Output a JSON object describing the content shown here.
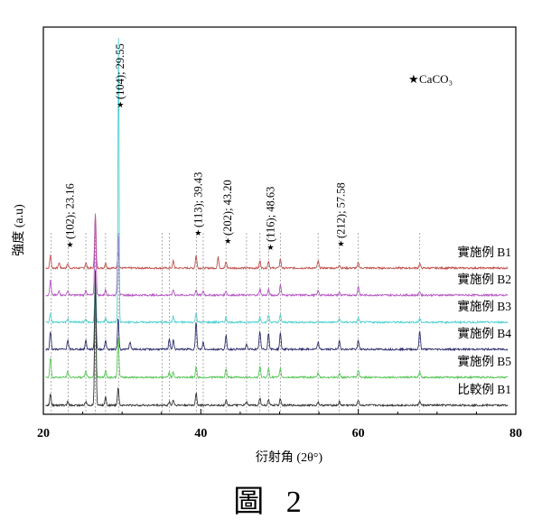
{
  "figure_caption": "圖 2",
  "chart_data": {
    "type": "line",
    "xlabel": "衍射角 (2θ°)",
    "ylabel": "強度 (a.u)",
    "xlim": [
      20,
      80
    ],
    "xticks": [
      20,
      40,
      60,
      80
    ],
    "grid": false,
    "legend_marker": "★",
    "legend_text": "CaCO₃",
    "peak_markers": [
      {
        "x": 23.16,
        "label": "(102); 23.16"
      },
      {
        "x": 29.55,
        "label": "(104); 29.55"
      },
      {
        "x": 39.43,
        "label": "(113); 39.43"
      },
      {
        "x": 43.2,
        "label": "(202); 43.20"
      },
      {
        "x": 48.63,
        "label": "(116); 48.63"
      },
      {
        "x": 57.58,
        "label": "(212); 57.58"
      }
    ],
    "reference_lines_x": [
      21.0,
      23.16,
      25.4,
      26.6,
      27.9,
      29.55,
      35.1,
      36.0,
      39.43,
      40.3,
      43.2,
      45.8,
      47.5,
      48.63,
      50.1,
      54.9,
      57.58,
      60.0,
      67.8
    ],
    "series": [
      {
        "name": "實施例 B1",
        "color": "#c0504d",
        "peaks": [
          [
            20.9,
            14
          ],
          [
            22.0,
            6
          ],
          [
            23.1,
            5
          ],
          [
            25.4,
            6
          ],
          [
            26.6,
            60
          ],
          [
            27.9,
            6
          ],
          [
            29.5,
            18
          ],
          [
            36.5,
            8
          ],
          [
            39.4,
            14
          ],
          [
            42.2,
            12
          ],
          [
            43.2,
            7
          ],
          [
            47.5,
            8
          ],
          [
            48.6,
            8
          ],
          [
            50.1,
            10
          ],
          [
            54.9,
            8
          ],
          [
            57.6,
            4
          ],
          [
            60.0,
            6
          ],
          [
            67.8,
            5
          ]
        ]
      },
      {
        "name": "實施例 B2",
        "color": "#b455c2",
        "peaks": [
          [
            20.9,
            16
          ],
          [
            22.0,
            5
          ],
          [
            23.1,
            5
          ],
          [
            25.4,
            6
          ],
          [
            26.6,
            90
          ],
          [
            27.9,
            6
          ],
          [
            29.5,
            70
          ],
          [
            36.5,
            6
          ],
          [
            39.4,
            6
          ],
          [
            40.3,
            5
          ],
          [
            43.2,
            5
          ],
          [
            47.5,
            7
          ],
          [
            48.6,
            6
          ],
          [
            50.1,
            12
          ],
          [
            54.9,
            5
          ],
          [
            57.6,
            3
          ],
          [
            60.0,
            10
          ],
          [
            67.8,
            4
          ]
        ]
      },
      {
        "name": "實施例 B3",
        "color": "#4fd0d0",
        "peaks": [
          [
            20.9,
            10
          ],
          [
            23.1,
            4
          ],
          [
            25.4,
            4
          ],
          [
            26.6,
            45
          ],
          [
            27.9,
            5
          ],
          [
            29.5,
            30
          ],
          [
            36.5,
            6
          ],
          [
            39.4,
            10
          ],
          [
            43.2,
            6
          ],
          [
            47.5,
            6
          ],
          [
            48.6,
            8
          ],
          [
            50.1,
            8
          ],
          [
            57.6,
            4
          ],
          [
            60.0,
            5
          ],
          [
            67.8,
            4
          ]
        ]
      },
      {
        "name": "實施例 B4",
        "color": "#2e2f6e",
        "peaks": [
          [
            20.9,
            20
          ],
          [
            23.1,
            10
          ],
          [
            25.4,
            10
          ],
          [
            26.6,
            65
          ],
          [
            27.9,
            10
          ],
          [
            29.5,
            34
          ],
          [
            31.0,
            8
          ],
          [
            36.0,
            12
          ],
          [
            36.5,
            10
          ],
          [
            39.4,
            30
          ],
          [
            40.3,
            8
          ],
          [
            43.2,
            15
          ],
          [
            45.8,
            6
          ],
          [
            47.5,
            20
          ],
          [
            48.6,
            18
          ],
          [
            50.1,
            18
          ],
          [
            54.9,
            8
          ],
          [
            57.6,
            10
          ],
          [
            60.0,
            10
          ],
          [
            67.8,
            20
          ]
        ]
      },
      {
        "name": "實施例 B5",
        "color": "#59c659",
        "peaks": [
          [
            20.9,
            22
          ],
          [
            23.1,
            6
          ],
          [
            25.4,
            8
          ],
          [
            26.6,
            80
          ],
          [
            27.9,
            8
          ],
          [
            29.5,
            45
          ],
          [
            36.0,
            6
          ],
          [
            36.5,
            6
          ],
          [
            39.4,
            12
          ],
          [
            43.2,
            10
          ],
          [
            47.5,
            12
          ],
          [
            48.6,
            10
          ],
          [
            50.1,
            10
          ],
          [
            54.9,
            5
          ],
          [
            57.6,
            4
          ],
          [
            60.0,
            8
          ],
          [
            67.8,
            6
          ]
        ]
      },
      {
        "name": "比較例 B1",
        "color": "#333333",
        "peaks": [
          [
            20.9,
            12
          ],
          [
            23.1,
            4
          ],
          [
            25.4,
            4
          ],
          [
            26.6,
            150
          ],
          [
            27.9,
            10
          ],
          [
            29.5,
            20
          ],
          [
            36.0,
            4
          ],
          [
            36.5,
            6
          ],
          [
            39.4,
            14
          ],
          [
            43.2,
            6
          ],
          [
            45.8,
            4
          ],
          [
            47.5,
            8
          ],
          [
            48.6,
            6
          ],
          [
            50.1,
            8
          ],
          [
            54.9,
            4
          ],
          [
            57.6,
            4
          ],
          [
            60.0,
            6
          ],
          [
            67.8,
            5
          ]
        ]
      }
    ],
    "tall_peak": {
      "x": 29.55,
      "height": 320
    }
  }
}
